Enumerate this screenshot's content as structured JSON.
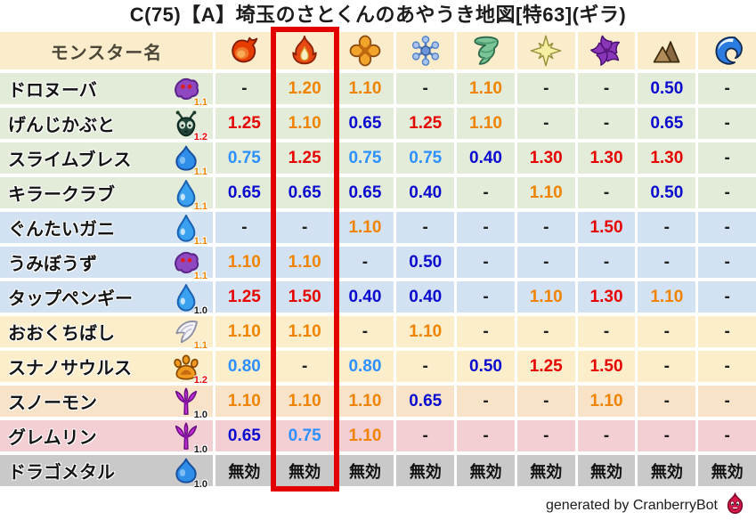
{
  "title": "C(75)【A】埼玉のさとくんのあやうき地図[特63](ギラ)",
  "header": {
    "monster_col_label": "モンスター名",
    "bg": "#fbeccb"
  },
  "element_columns": [
    {
      "id": "mera",
      "icon": "fireball-icon"
    },
    {
      "id": "gira",
      "icon": "flame-icon",
      "highlighted": true
    },
    {
      "id": "io",
      "icon": "burst-icon"
    },
    {
      "id": "hyado",
      "icon": "snowflake-icon"
    },
    {
      "id": "bagi",
      "icon": "tornado-icon"
    },
    {
      "id": "dein",
      "icon": "spark-icon"
    },
    {
      "id": "dorma",
      "icon": "pinwheel-icon"
    },
    {
      "id": "earth",
      "icon": "mountain-icon"
    },
    {
      "id": "wave",
      "icon": "wave-icon"
    }
  ],
  "rows": [
    {
      "name": "ドロヌーバ",
      "family_icon": "blob-icon",
      "rate": "1.1",
      "rate_color": "#f08300",
      "row_bg": "#e2ecd9",
      "values": [
        "-",
        "1.20",
        "1.10",
        "-",
        "1.10",
        "-",
        "-",
        "0.50",
        "-"
      ]
    },
    {
      "name": "げんじかぶと",
      "family_icon": "bug-icon",
      "rate": "1.2",
      "rate_color": "#e60000",
      "row_bg": "#e2ecd9",
      "values": [
        "1.25",
        "1.10",
        "0.65",
        "1.25",
        "1.10",
        "-",
        "-",
        "0.65",
        "-"
      ]
    },
    {
      "name": "スライムブレス",
      "family_icon": "slime-icon",
      "rate": "1.1",
      "rate_color": "#f08300",
      "row_bg": "#e2ecd9",
      "values": [
        "0.75",
        "1.25",
        "0.75",
        "0.75",
        "0.40",
        "1.30",
        "1.30",
        "1.30",
        "-"
      ]
    },
    {
      "name": "キラークラブ",
      "family_icon": "waterdrop-icon",
      "rate": "1.1",
      "rate_color": "#f08300",
      "row_bg": "#e2ecd9",
      "values": [
        "0.65",
        "0.65",
        "0.65",
        "0.40",
        "-",
        "1.10",
        "-",
        "0.50",
        "-"
      ]
    },
    {
      "name": "ぐんたいガニ",
      "family_icon": "waterdrop-icon",
      "rate": "1.1",
      "rate_color": "#f08300",
      "row_bg": "#d3e2f2",
      "values": [
        "-",
        "-",
        "1.10",
        "-",
        "-",
        "-",
        "1.50",
        "-",
        "-"
      ]
    },
    {
      "name": "うみぼうず",
      "family_icon": "blob-icon",
      "rate": "1.1",
      "rate_color": "#f08300",
      "row_bg": "#d3e2f2",
      "values": [
        "1.10",
        "1.10",
        "-",
        "0.50",
        "-",
        "-",
        "-",
        "-",
        "-"
      ]
    },
    {
      "name": "タップペンギー",
      "family_icon": "waterdrop-icon",
      "rate": "1.0",
      "rate_color": "#1a1a1a",
      "row_bg": "#d3e2f2",
      "values": [
        "1.25",
        "1.50",
        "0.40",
        "0.40",
        "-",
        "1.10",
        "1.30",
        "1.10",
        "-"
      ]
    },
    {
      "name": "おおくちばし",
      "family_icon": "wing-icon",
      "rate": "1.1",
      "rate_color": "#f08300",
      "row_bg": "#fcedcb",
      "values": [
        "1.10",
        "1.10",
        "-",
        "1.10",
        "-",
        "-",
        "-",
        "-",
        "-"
      ]
    },
    {
      "name": "スナノサウルス",
      "family_icon": "paw-icon",
      "rate": "1.2",
      "rate_color": "#e60000",
      "row_bg": "#fcedcb",
      "values": [
        "0.80",
        "-",
        "0.80",
        "-",
        "0.50",
        "1.25",
        "1.50",
        "-",
        "-"
      ]
    },
    {
      "name": "スノーモン",
      "family_icon": "trident-icon",
      "rate": "1.0",
      "rate_color": "#1a1a1a",
      "row_bg": "#f8e3c9",
      "values": [
        "1.10",
        "1.10",
        "1.10",
        "0.65",
        "-",
        "-",
        "1.10",
        "-",
        "-"
      ]
    },
    {
      "name": "グレムリン",
      "family_icon": "trident-icon",
      "rate": "1.0",
      "rate_color": "#1a1a1a",
      "row_bg": "#f3ced3",
      "values": [
        "0.65",
        "0.75",
        "1.10",
        "-",
        "-",
        "-",
        "-",
        "-",
        "-"
      ]
    },
    {
      "name": "ドラゴメタル",
      "family_icon": "slime-icon",
      "rate": "1.0",
      "rate_color": "#1a1a1a",
      "row_bg": "#c9c9c9",
      "values": [
        "無効",
        "無効",
        "無効",
        "無効",
        "無効",
        "無効",
        "無効",
        "無効",
        "無効"
      ]
    }
  ],
  "immune_label": "無効",
  "value_colors": {
    "red": "#e60000",
    "orange": "#f08300",
    "light_blue": "#2e90ff",
    "dark_blue": "#0b0bd0",
    "neutral": "#1f1f1f"
  },
  "highlight_box_color": "#e30000",
  "footer": {
    "credit": "generated by CranberryBot",
    "icon": "slime-face-icon"
  }
}
